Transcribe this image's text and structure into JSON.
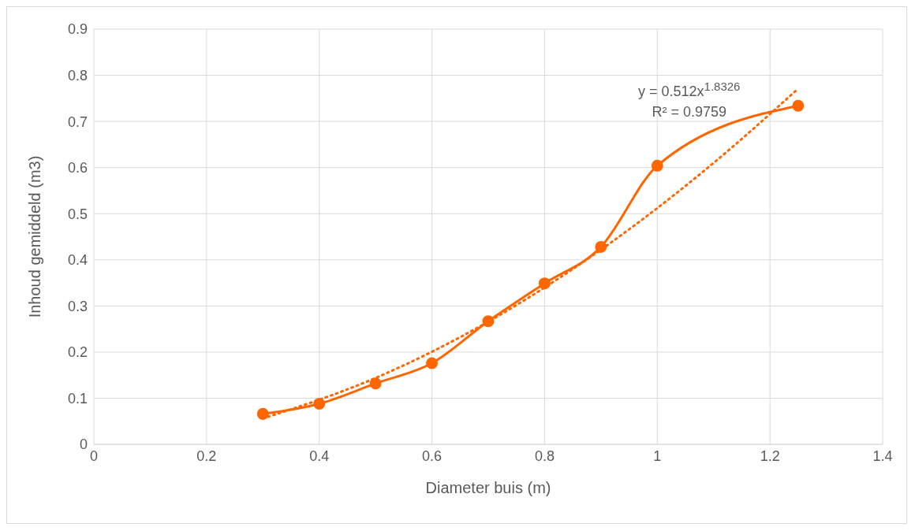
{
  "chart_data": {
    "type": "line",
    "xlabel": "Diameter buis (m)",
    "ylabel": "Inhoud gemiddeld (m3)",
    "xlim": [
      0,
      1.4
    ],
    "xticks": [
      0,
      0.2,
      0.4,
      0.6,
      0.8,
      1,
      1.2,
      1.4
    ],
    "ylim": [
      0,
      0.9
    ],
    "yticks": [
      0,
      0.1,
      0.2,
      0.3,
      0.4,
      0.5,
      0.6,
      0.7,
      0.8,
      0.9
    ],
    "grid": true,
    "marker": "circle",
    "line_style": "solid",
    "series": [
      {
        "color": "#ff6600",
        "x": [
          0.3,
          0.4,
          0.5,
          0.6,
          0.7,
          0.8,
          0.9,
          1,
          1.25
        ],
        "values": [
          0.066,
          0.088,
          0.132,
          0.176,
          0.267,
          0.349,
          0.428,
          0.604,
          0.734
        ]
      },
      {
        "type": "line",
        "color": "#ff6600",
        "marker": "none",
        "line_style": "dotted",
        "x": [
          0.3,
          0.5,
          0.7,
          0.9,
          1.1,
          1.25
        ],
        "values": [
          0.056,
          0.144,
          0.266,
          0.422,
          0.61,
          0.771
        ]
      }
    ],
    "annotations": [
      "y = 0.512x$^{1.8326}$",
      "R² = 0.9759"
    ]
  }
}
